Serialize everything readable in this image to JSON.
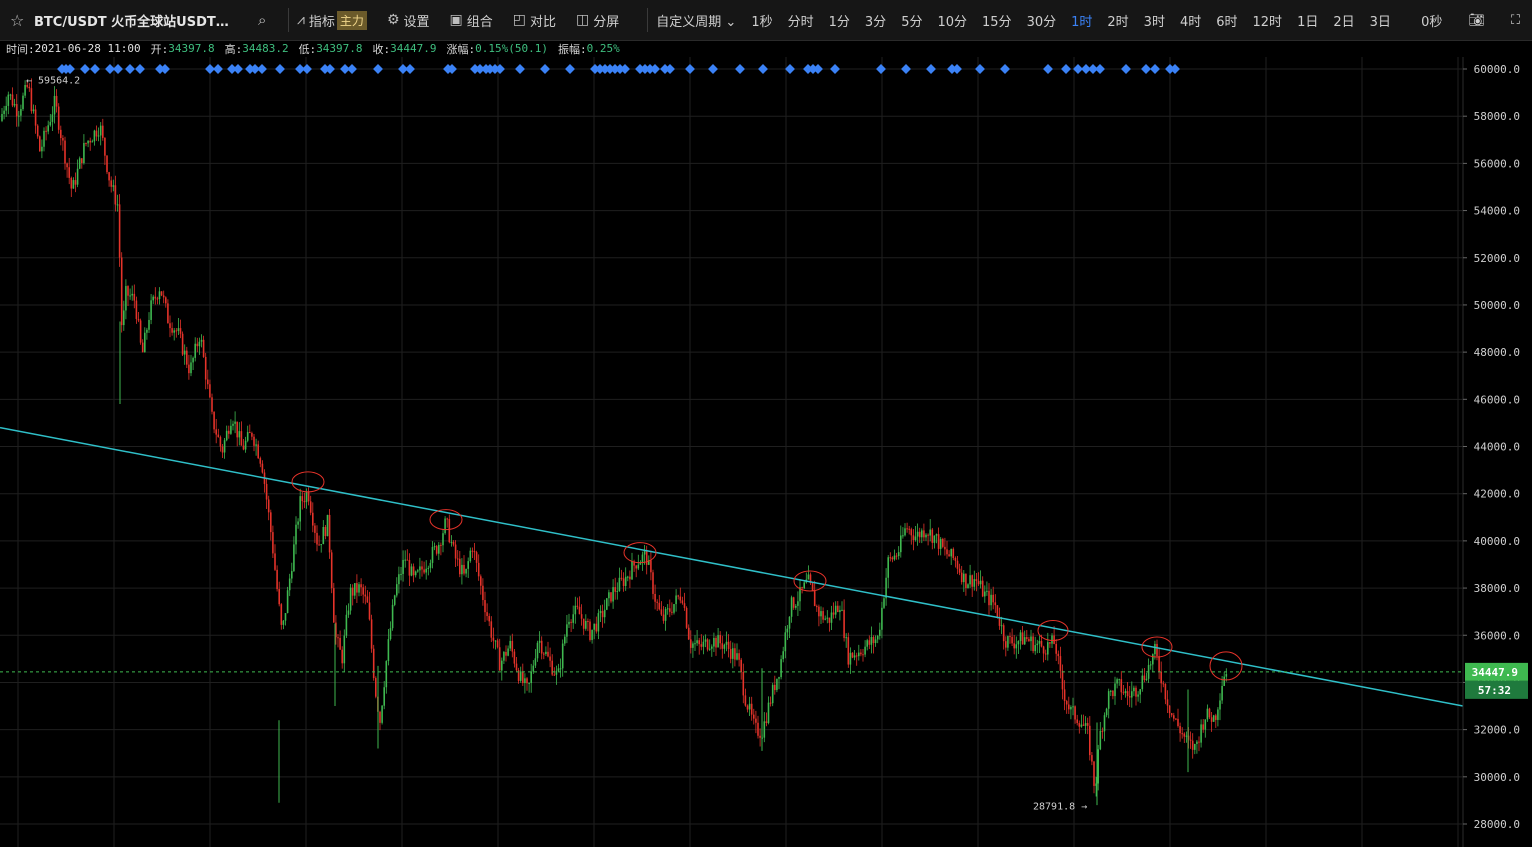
{
  "toolbar": {
    "symbol": "BTC/USDT 火币全球站USDT…",
    "indicators": "指标",
    "main_badge": "主力",
    "settings": "设置",
    "combine": "组合",
    "compare": "对比",
    "split": "分屏",
    "custom_period": "自定义周期",
    "periods": [
      "1秒",
      "分时",
      "1分",
      "3分",
      "5分",
      "10分",
      "15分",
      "30分",
      "1时",
      "2时",
      "3时",
      "4时",
      "6时",
      "12时",
      "1日",
      "2日",
      "3日"
    ],
    "active_period": "1时",
    "countdown_label": "0秒"
  },
  "info": {
    "time_label": "时间:",
    "time": "2021-06-28 11:00",
    "open_label": "开:",
    "open": "34397.8",
    "high_label": "高:",
    "high": "34483.2",
    "low_label": "低:",
    "low": "34397.8",
    "close_label": "收:",
    "close": "34447.9",
    "change_label": "涨幅:",
    "change": "0.15%(50.1)",
    "amp_label": "振幅:",
    "amp": "0.25%"
  },
  "chart_data": {
    "type": "candlestick",
    "symbol": "BTC/USDT",
    "interval": "1时",
    "yticks": [
      60000,
      58000,
      56000,
      54000,
      52000,
      50000,
      48000,
      46000,
      44000,
      42000,
      40000,
      38000,
      36000,
      34000,
      32000,
      30000,
      28000
    ],
    "ytick_labels": [
      "60000.0",
      "58000.0",
      "56000.0",
      "54000.0",
      "52000.0",
      "50000.0",
      "48000.0",
      "46000.0",
      "44000.0",
      "42000.0",
      "40000.0",
      "38000.0",
      "36000.0",
      "34000.0",
      "32000.0",
      "30000.0",
      "28000.0"
    ],
    "ylim": [
      27500,
      60500
    ],
    "grid": true,
    "max_marker": "59564.2",
    "min_marker": "28791.8",
    "last_price": "34447.9",
    "countdown": "57:32",
    "price_path": [
      [
        0,
        57800
      ],
      [
        8,
        59000
      ],
      [
        18,
        58200
      ],
      [
        28,
        59300
      ],
      [
        40,
        56500
      ],
      [
        55,
        58600
      ],
      [
        62,
        57000
      ],
      [
        72,
        54800
      ],
      [
        85,
        56800
      ],
      [
        100,
        57600
      ],
      [
        110,
        55200
      ],
      [
        118,
        54200
      ],
      [
        122,
        48800
      ],
      [
        126,
        50500
      ],
      [
        135,
        50200
      ],
      [
        142,
        47800
      ],
      [
        150,
        49800
      ],
      [
        160,
        50800
      ],
      [
        168,
        49400
      ],
      [
        178,
        48800
      ],
      [
        190,
        47200
      ],
      [
        200,
        48800
      ],
      [
        212,
        45200
      ],
      [
        222,
        43800
      ],
      [
        232,
        45400
      ],
      [
        242,
        43900
      ],
      [
        252,
        44600
      ],
      [
        262,
        43300
      ],
      [
        272,
        40000
      ],
      [
        282,
        36000
      ],
      [
        290,
        38500
      ],
      [
        300,
        41600
      ],
      [
        308,
        42100
      ],
      [
        318,
        39800
      ],
      [
        328,
        40800
      ],
      [
        335,
        36000
      ],
      [
        342,
        35000
      ],
      [
        350,
        37800
      ],
      [
        360,
        38000
      ],
      [
        368,
        37200
      ],
      [
        375,
        33800
      ],
      [
        380,
        32400
      ],
      [
        386,
        34800
      ],
      [
        395,
        37800
      ],
      [
        405,
        39300
      ],
      [
        414,
        38300
      ],
      [
        425,
        39000
      ],
      [
        438,
        39800
      ],
      [
        446,
        40800
      ],
      [
        455,
        39300
      ],
      [
        465,
        38400
      ],
      [
        472,
        39900
      ],
      [
        482,
        37800
      ],
      [
        492,
        36000
      ],
      [
        500,
        34800
      ],
      [
        510,
        35600
      ],
      [
        520,
        34200
      ],
      [
        528,
        33600
      ],
      [
        538,
        35900
      ],
      [
        548,
        35000
      ],
      [
        558,
        34200
      ],
      [
        568,
        36800
      ],
      [
        578,
        37000
      ],
      [
        590,
        36100
      ],
      [
        600,
        36700
      ],
      [
        612,
        37800
      ],
      [
        625,
        38400
      ],
      [
        636,
        39100
      ],
      [
        646,
        39400
      ],
      [
        655,
        37600
      ],
      [
        662,
        36600
      ],
      [
        670,
        37100
      ],
      [
        682,
        37800
      ],
      [
        690,
        35700
      ],
      [
        700,
        35500
      ],
      [
        712,
        35800
      ],
      [
        725,
        35600
      ],
      [
        738,
        35000
      ],
      [
        745,
        33400
      ],
      [
        755,
        32000
      ],
      [
        762,
        31900
      ],
      [
        770,
        33200
      ],
      [
        780,
        34700
      ],
      [
        790,
        37200
      ],
      [
        800,
        37700
      ],
      [
        808,
        38300
      ],
      [
        818,
        37000
      ],
      [
        828,
        36600
      ],
      [
        840,
        37400
      ],
      [
        848,
        35100
      ],
      [
        858,
        35300
      ],
      [
        868,
        35600
      ],
      [
        878,
        35900
      ],
      [
        888,
        39100
      ],
      [
        898,
        39500
      ],
      [
        906,
        40600
      ],
      [
        916,
        40200
      ],
      [
        926,
        40500
      ],
      [
        936,
        40100
      ],
      [
        945,
        39500
      ],
      [
        955,
        39200
      ],
      [
        965,
        38300
      ],
      [
        975,
        38400
      ],
      [
        985,
        37700
      ],
      [
        995,
        37300
      ],
      [
        1005,
        35800
      ],
      [
        1015,
        35700
      ],
      [
        1025,
        35900
      ],
      [
        1035,
        35600
      ],
      [
        1045,
        35500
      ],
      [
        1055,
        35700
      ],
      [
        1062,
        33800
      ],
      [
        1070,
        32800
      ],
      [
        1080,
        32400
      ],
      [
        1088,
        31800
      ],
      [
        1095,
        29400
      ],
      [
        1100,
        31800
      ],
      [
        1108,
        33400
      ],
      [
        1118,
        33900
      ],
      [
        1128,
        33400
      ],
      [
        1138,
        33800
      ],
      [
        1148,
        34600
      ],
      [
        1155,
        35300
      ],
      [
        1165,
        33600
      ],
      [
        1172,
        32600
      ],
      [
        1180,
        32000
      ],
      [
        1188,
        31400
      ],
      [
        1195,
        31200
      ],
      [
        1205,
        32600
      ],
      [
        1215,
        32500
      ],
      [
        1224,
        34400
      ]
    ],
    "trendline": {
      "start": [
        0,
        44800
      ],
      "end": [
        1463,
        33000
      ]
    },
    "swing_highs": [
      [
        308,
        42500
      ],
      [
        446,
        40900
      ],
      [
        640,
        39500
      ],
      [
        810,
        38300
      ],
      [
        1053,
        36200
      ],
      [
        1157,
        35500
      ],
      [
        1226,
        34700
      ]
    ]
  }
}
